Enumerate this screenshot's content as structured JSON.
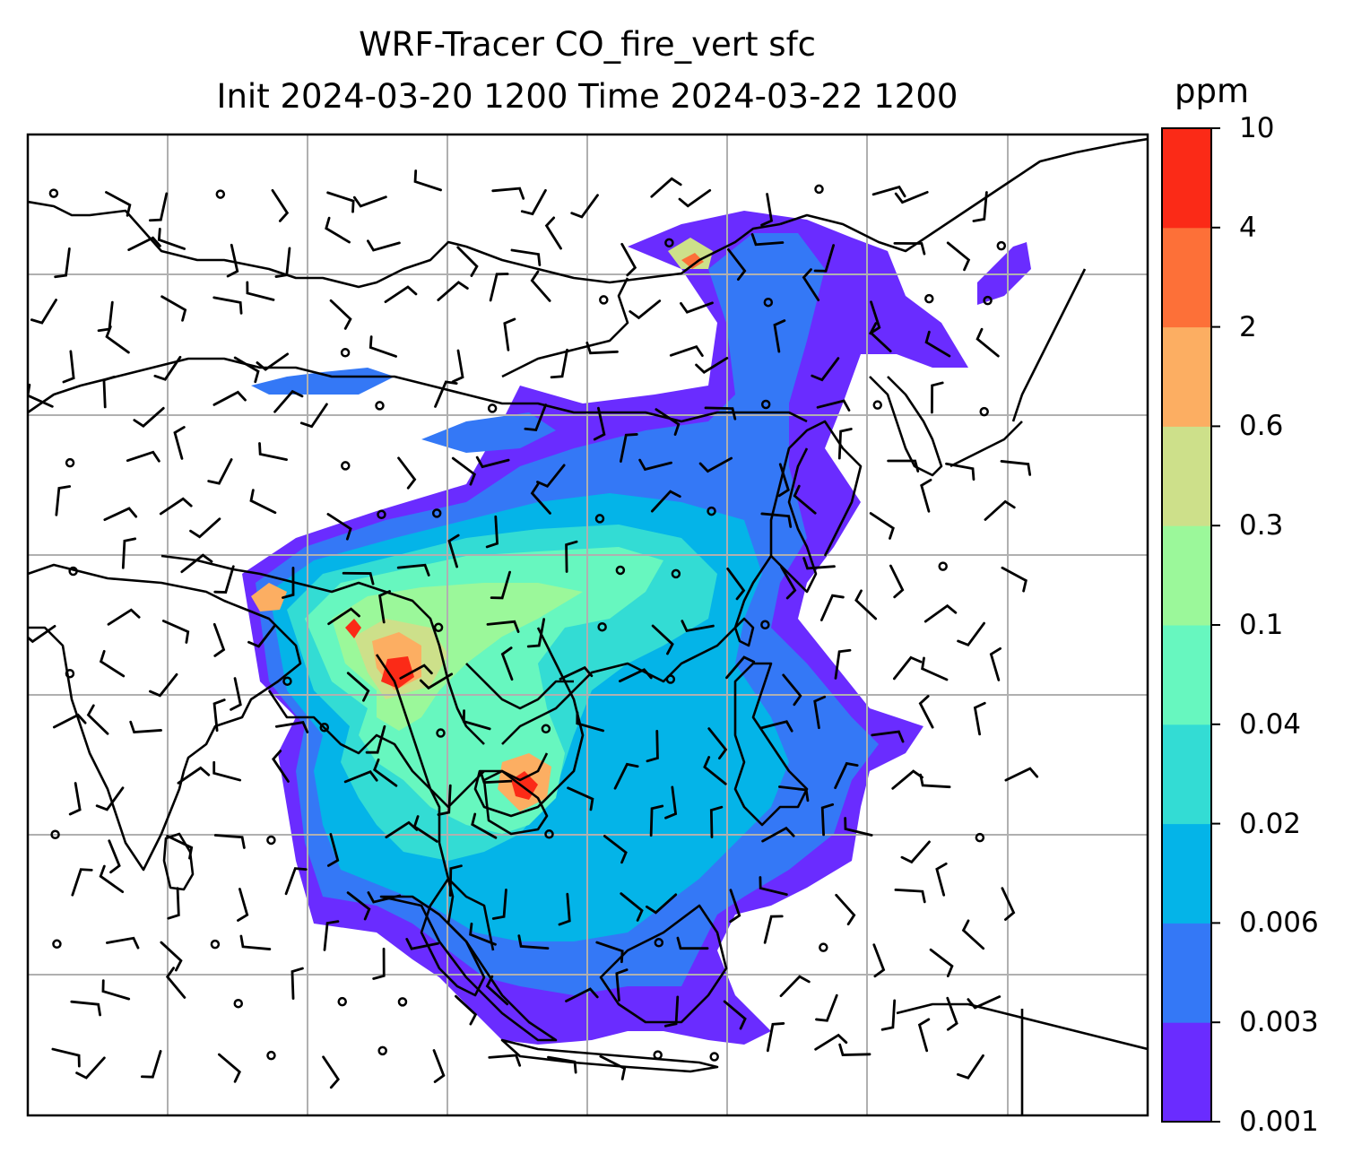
{
  "title": {
    "line1": "WRF-Tracer CO_fire_vert sfc",
    "line2": "Init 2024-03-20 1200 Time 2024-03-22 1200"
  },
  "colorbar": {
    "unit": "ppm",
    "levels": [
      "0.001",
      "0.003",
      "0.006",
      "0.02",
      "0.04",
      "0.1",
      "0.3",
      "0.6",
      "2",
      "4",
      "10"
    ],
    "colors": [
      "#6a2cff",
      "#3478f6",
      "#04b4e8",
      "#33dcd4",
      "#67f7bf",
      "#9bf89a",
      "#cde08a",
      "#fcae62",
      "#fd7038",
      "#fb2a17"
    ]
  },
  "map": {
    "gridlines": true,
    "gridline_color": "#b0b0b0",
    "coastline_color": "#000000"
  }
}
